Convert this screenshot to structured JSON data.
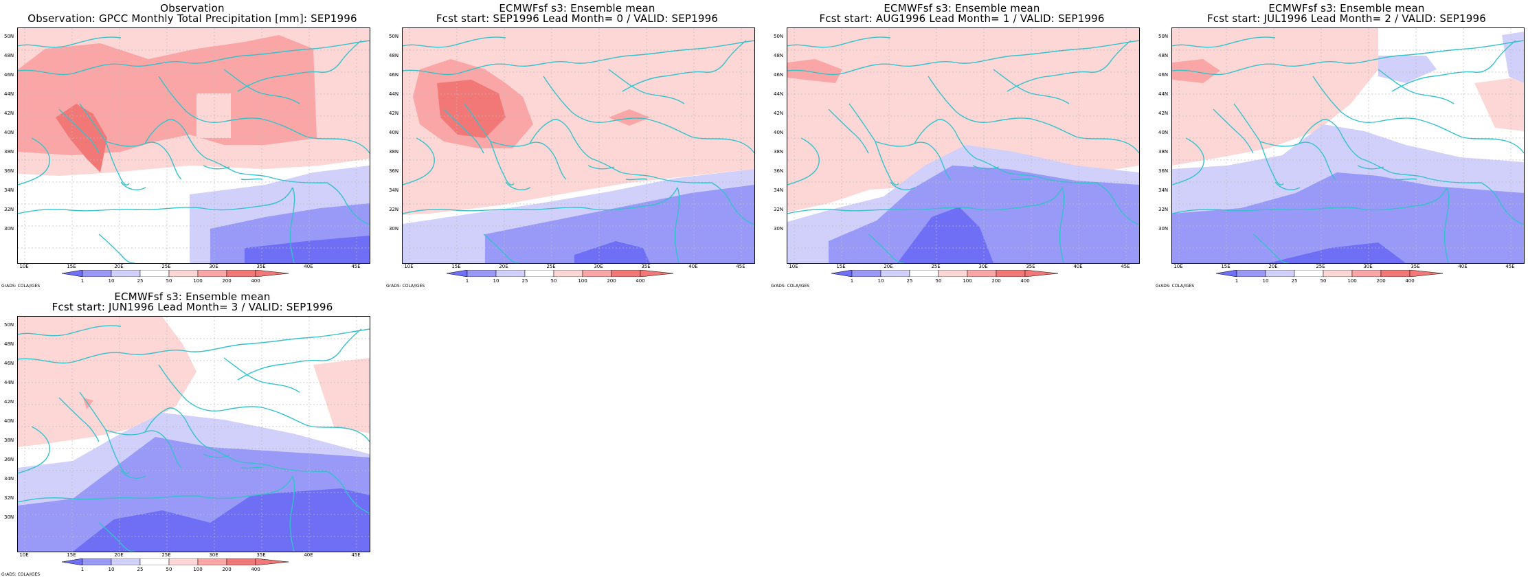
{
  "panels": [
    {
      "title1": "Observation",
      "title2": "Observation: GPCC Monthly Total Precipitation [mm]: SEP1996"
    },
    {
      "title1": "ECMWFsf s3: Ensemble mean",
      "title2": "Fcst start: SEP1996  Lead Month= 0 / VALID: SEP1996"
    },
    {
      "title1": "ECMWFsf s3: Ensemble mean",
      "title2": "Fcst start: AUG1996  Lead Month= 1 / VALID: SEP1996"
    },
    {
      "title1": "ECMWFsf s3: Ensemble mean",
      "title2": "Fcst start: JUL1996  Lead Month= 2 / VALID: SEP1996"
    },
    {
      "title1": "ECMWFsf s3: Ensemble mean",
      "title2": "Fcst start: JUN1996  Lead Month= 3 / VALID: SEP1996"
    }
  ],
  "lat_ticks": [
    "50N",
    "48N",
    "46N",
    "44N",
    "42N",
    "40N",
    "38N",
    "36N",
    "34N",
    "32N",
    "30N"
  ],
  "lon_ticks": [
    "10E",
    "15E",
    "20E",
    "25E",
    "30E",
    "35E",
    "40E",
    "45E"
  ],
  "colorbar_labels": [
    "1",
    "10",
    "25",
    "50",
    "100",
    "200",
    "400"
  ],
  "credit": "GrADS: COLA/IGES",
  "colors": {
    "blue_dark": "#6f6ff5",
    "blue_mid": "#9999f7",
    "blue_light": "#d0d0fb",
    "red_light": "#fdd6d6",
    "red_mid": "#fba6a6",
    "red_dark": "#f27878",
    "coast": "#33c2cc",
    "grid": "#bbbbbb"
  }
}
